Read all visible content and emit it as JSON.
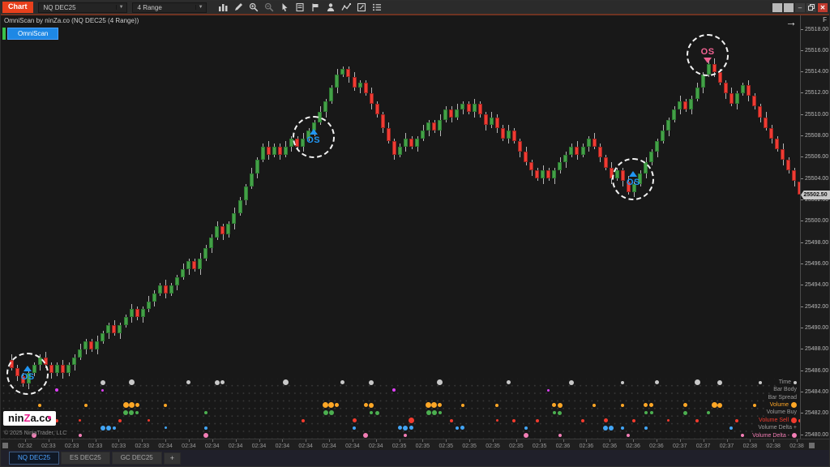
{
  "toolbar": {
    "chart_label": "Chart",
    "instrument": "NQ DEC25",
    "interval": "4 Range",
    "icons": [
      "chart-style-icon",
      "drawing-tools-icon",
      "zoom-in-icon",
      "zoom-out-icon",
      "cursor-icon",
      "data-box-icon",
      "flag-icon",
      "chart-trader-icon",
      "indicators-icon",
      "snapshot-icon",
      "properties-icon"
    ],
    "window_controls": [
      "workspace-1",
      "workspace-2",
      "minimize",
      "restore",
      "close"
    ]
  },
  "chart": {
    "title": "OmniScan by ninZa.co (NQ DEC25 (4 Range))",
    "indicator_button": "OmniScan",
    "goto_latest_arrow": "→",
    "price_axis": {
      "corner_label": "F",
      "last_price": "25502.50",
      "last_price_value": 25502.5,
      "ticks": [
        "25518.00",
        "25516.00",
        "25514.00",
        "25512.00",
        "25510.00",
        "25508.00",
        "25506.00",
        "25504.00",
        "25502.00",
        "25500.00",
        "25498.00",
        "25496.00",
        "25494.00",
        "25492.00",
        "25490.00",
        "25488.00",
        "25486.00",
        "25484.00",
        "25482.00",
        "25480.00"
      ]
    },
    "time_axis": {
      "labels": [
        "02:32",
        "02:33",
        "02:33",
        "02:33",
        "02:33",
        "02:33",
        "02:34",
        "02:34",
        "02:34",
        "02:34",
        "02:34",
        "02:34",
        "02:34",
        "02:34",
        "02:34",
        "02:34",
        "02:35",
        "02:35",
        "02:35",
        "02:35",
        "02:35",
        "02:35",
        "02:35",
        "02:36",
        "02:36",
        "02:36",
        "02:36",
        "02:36",
        "02:37",
        "02:37",
        "02:37",
        "02:38",
        "02:38",
        "02:38"
      ]
    },
    "signals": [
      {
        "bar": 3,
        "price": 25485.6,
        "side": "buy",
        "label": "OS"
      },
      {
        "bar": 53,
        "price": 25507.8,
        "side": "buy",
        "label": "OS"
      },
      {
        "bar": 109,
        "price": 25503.9,
        "side": "buy",
        "label": "OS"
      },
      {
        "bar": 122,
        "price": 25515.5,
        "side": "sell",
        "label": "OS"
      }
    ],
    "signal_colors": {
      "buy": "#2196f3",
      "sell": "#f06292"
    },
    "candle_colors": {
      "up": "#43a047",
      "down": "#ef3b33"
    },
    "scan_rows": [
      {
        "label": "Time",
        "color": "#c8c8c8",
        "label_color": "#9a9a9a",
        "legend_dot": 4,
        "dots": [
          [
            16,
            6
          ],
          [
            21,
            7
          ],
          [
            31,
            5
          ],
          [
            36,
            6
          ],
          [
            37,
            5
          ],
          [
            48,
            7
          ],
          [
            58,
            5
          ],
          [
            63,
            6
          ],
          [
            75,
            7
          ],
          [
            87,
            5
          ],
          [
            98,
            6
          ],
          [
            107,
            4
          ],
          [
            113,
            5
          ],
          [
            120,
            7
          ],
          [
            124,
            6
          ],
          [
            131,
            4
          ]
        ]
      },
      {
        "label": "Bar Body",
        "color": "#e040fb",
        "label_color": "#9a9a9a",
        "legend_dot": 0,
        "dots": [
          [
            8,
            4
          ],
          [
            16,
            3
          ],
          [
            67,
            4
          ],
          [
            94,
            3
          ],
          [
            134,
            4
          ]
        ]
      },
      {
        "label": "Bar Spread",
        "color": "#b8b832",
        "label_color": "#9a9a9a",
        "legend_dot": 0,
        "dots": []
      },
      {
        "label": "Volume",
        "color": "#ffa726",
        "label_color": "#ffa726",
        "legend_dot": 7,
        "dots": [
          [
            5,
            4
          ],
          [
            13,
            4
          ],
          [
            20,
            7
          ],
          [
            21,
            7
          ],
          [
            22,
            5
          ],
          [
            27,
            4
          ],
          [
            55,
            7
          ],
          [
            56,
            7
          ],
          [
            57,
            5
          ],
          [
            62,
            5
          ],
          [
            63,
            6
          ],
          [
            73,
            7
          ],
          [
            74,
            7
          ],
          [
            75,
            5
          ],
          [
            79,
            4
          ],
          [
            85,
            4
          ],
          [
            95,
            5
          ],
          [
            96,
            6
          ],
          [
            102,
            4
          ],
          [
            107,
            4
          ],
          [
            111,
            5
          ],
          [
            112,
            5
          ],
          [
            118,
            5
          ],
          [
            123,
            7
          ],
          [
            124,
            6
          ],
          [
            130,
            4
          ],
          [
            134,
            5
          ],
          [
            137,
            4
          ]
        ]
      },
      {
        "label": "Volume Buy",
        "color": "#4caf50",
        "label_color": "#9a9a9a",
        "legend_dot": 0,
        "dots": [
          [
            20,
            6
          ],
          [
            21,
            6
          ],
          [
            22,
            4
          ],
          [
            34,
            4
          ],
          [
            55,
            6
          ],
          [
            56,
            6
          ],
          [
            63,
            4
          ],
          [
            64,
            5
          ],
          [
            73,
            6
          ],
          [
            74,
            6
          ],
          [
            75,
            4
          ],
          [
            95,
            4
          ],
          [
            96,
            5
          ],
          [
            111,
            4
          ],
          [
            112,
            4
          ],
          [
            118,
            5
          ],
          [
            122,
            4
          ],
          [
            133,
            4
          ]
        ]
      },
      {
        "label": "Volume Sell",
        "color": "#f23b2e",
        "label_color": "#f23b2e",
        "legend_dot": 7,
        "dots": [
          [
            2,
            4
          ],
          [
            4,
            3
          ],
          [
            8,
            4
          ],
          [
            12,
            3
          ],
          [
            19,
            4
          ],
          [
            24,
            3
          ],
          [
            51,
            4
          ],
          [
            60,
            5
          ],
          [
            70,
            7
          ],
          [
            77,
            4
          ],
          [
            85,
            3
          ],
          [
            88,
            4
          ],
          [
            92,
            4
          ],
          [
            100,
            4
          ],
          [
            104,
            5
          ],
          [
            109,
            4
          ],
          [
            115,
            3
          ],
          [
            120,
            4
          ],
          [
            127,
            4
          ],
          [
            132,
            3
          ],
          [
            136,
            5
          ],
          [
            138,
            4
          ]
        ]
      },
      {
        "label": "Volume Delta +",
        "color": "#42a5f5",
        "label_color": "#9a9a9a",
        "legend_dot": 0,
        "dots": [
          [
            16,
            6
          ],
          [
            17,
            6
          ],
          [
            18,
            4
          ],
          [
            27,
            3
          ],
          [
            34,
            4
          ],
          [
            60,
            4
          ],
          [
            68,
            5
          ],
          [
            69,
            6
          ],
          [
            70,
            5
          ],
          [
            78,
            4
          ],
          [
            79,
            5
          ],
          [
            90,
            4
          ],
          [
            104,
            6
          ],
          [
            105,
            6
          ],
          [
            107,
            4
          ],
          [
            111,
            4
          ],
          [
            126,
            4
          ],
          [
            132,
            5
          ]
        ]
      },
      {
        "label": "Volume Delta -",
        "color": "#f37eb6",
        "label_color": "#f37eb6",
        "legend_dot": 6,
        "dots": [
          [
            4,
            6
          ],
          [
            12,
            4
          ],
          [
            34,
            6
          ],
          [
            62,
            6
          ],
          [
            69,
            4
          ],
          [
            90,
            6
          ],
          [
            96,
            4
          ],
          [
            108,
            4
          ],
          [
            128,
            4
          ],
          [
            134,
            5
          ],
          [
            137,
            4
          ]
        ]
      }
    ],
    "chart_data": {
      "type": "candlestick",
      "title": "NQ DEC25 (4 Range)",
      "ylabel": "Price",
      "ylim": [
        25480,
        25518
      ],
      "grid": false,
      "first_open": 25487.0,
      "closes": [
        25486.25,
        25485.5,
        25484.75,
        25485.75,
        25486.5,
        25487.25,
        25486.5,
        25485.75,
        25486.5,
        25485.75,
        25486.5,
        25487.25,
        25488.0,
        25488.75,
        25488.0,
        25488.75,
        25489.5,
        25490.25,
        25489.5,
        25490.25,
        25491.0,
        25491.75,
        25491.0,
        25491.75,
        25492.5,
        25493.25,
        25494.0,
        25493.25,
        25494.0,
        25494.75,
        25495.5,
        25496.25,
        25495.5,
        25496.5,
        25497.5,
        25498.5,
        25499.5,
        25498.75,
        25499.75,
        25500.75,
        25502.0,
        25503.25,
        25504.5,
        25505.75,
        25507.0,
        25506.25,
        25507.0,
        25506.25,
        25507.0,
        25507.75,
        25507.0,
        25507.75,
        25508.5,
        25509.25,
        25510.25,
        25511.25,
        25512.5,
        25513.75,
        25514.25,
        25513.5,
        25512.5,
        25513.0,
        25512.0,
        25511.0,
        25510.0,
        25508.75,
        25507.5,
        25506.25,
        25507.0,
        25507.75,
        25507.0,
        25507.75,
        25508.5,
        25509.25,
        25508.5,
        25509.5,
        25510.5,
        25509.75,
        25510.5,
        25511.0,
        25510.25,
        25511.0,
        25510.0,
        25509.0,
        25509.75,
        25508.75,
        25507.75,
        25508.5,
        25507.5,
        25506.5,
        25505.5,
        25504.75,
        25504.0,
        25504.75,
        25504.0,
        25504.75,
        25505.5,
        25506.25,
        25507.0,
        25506.25,
        25507.0,
        25507.75,
        25507.0,
        25506.0,
        25505.0,
        25504.0,
        25504.75,
        25503.75,
        25502.75,
        25503.5,
        25504.5,
        25505.5,
        25506.5,
        25507.5,
        25508.5,
        25509.5,
        25510.5,
        25511.25,
        25510.5,
        25511.5,
        25512.5,
        25513.75,
        25514.75,
        25514.0,
        25513.0,
        25512.0,
        25511.0,
        25512.0,
        25512.75,
        25511.75,
        25510.75,
        25509.75,
        25508.75,
        25507.75,
        25506.75,
        25505.75,
        25504.75,
        25503.75,
        25502.5
      ]
    }
  },
  "footer": {
    "logo": {
      "part1": "nin",
      "z": "Z",
      "part2": "a.c",
      "o": "o"
    },
    "copyright": "© 2025 NinjaTrader, LLC",
    "tabs": [
      {
        "label": "NQ DEC25",
        "active": true
      },
      {
        "label": "ES DEC25",
        "active": false
      },
      {
        "label": "GC DEC25",
        "active": false
      }
    ],
    "add_tab": "+"
  }
}
